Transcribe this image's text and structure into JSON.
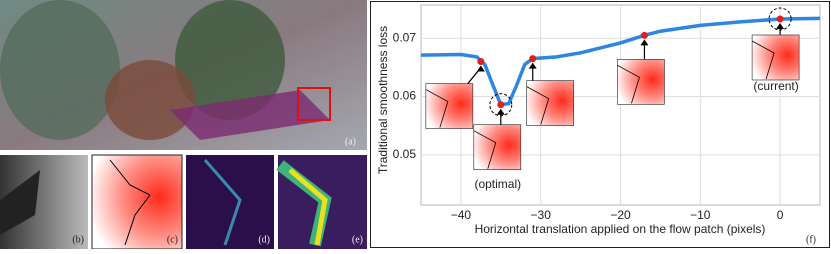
{
  "panels": {
    "a": "(a)",
    "b": "(b)",
    "c": "(c)",
    "d": "(d)",
    "e": "(e)"
  },
  "chart_data": {
    "type": "line",
    "panel_label": "(f)",
    "xlabel": "Horizontal translation applied on the flow patch (pixels)",
    "ylabel": "Traditional smoothness loss",
    "xlim": [
      -45,
      5
    ],
    "ylim": [
      0.0414,
      0.0757
    ],
    "xticks": [
      {
        "value": -40,
        "label": "−40"
      },
      {
        "value": -30,
        "label": "−30"
      },
      {
        "value": -20,
        "label": "−20"
      },
      {
        "value": -10,
        "label": "−10"
      },
      0
    ],
    "yticks": [
      0.05,
      0.06,
      0.07
    ],
    "series": [
      {
        "color": "#2e86e0",
        "x": [
          -45,
          -40,
          -38,
          -37,
          -36,
          -35,
          -34,
          -33,
          -32,
          -31,
          -28,
          -25,
          -20,
          -17,
          -15,
          -10,
          -5,
          0,
          5
        ],
        "values": [
          0.0671,
          0.0672,
          0.0668,
          0.0655,
          0.062,
          0.0586,
          0.0588,
          0.062,
          0.0655,
          0.0665,
          0.0668,
          0.0675,
          0.0692,
          0.0705,
          0.0712,
          0.0722,
          0.0728,
          0.0733,
          0.0734
        ]
      }
    ],
    "markers": {
      "color": "#e0201b",
      "x": [
        -37.5,
        -35,
        -31,
        -17,
        0
      ],
      "values": [
        0.066,
        0.0586,
        0.0665,
        0.0705,
        0.0733
      ]
    },
    "annotations": {
      "optimal": "(optimal)",
      "current": "(current)"
    }
  }
}
